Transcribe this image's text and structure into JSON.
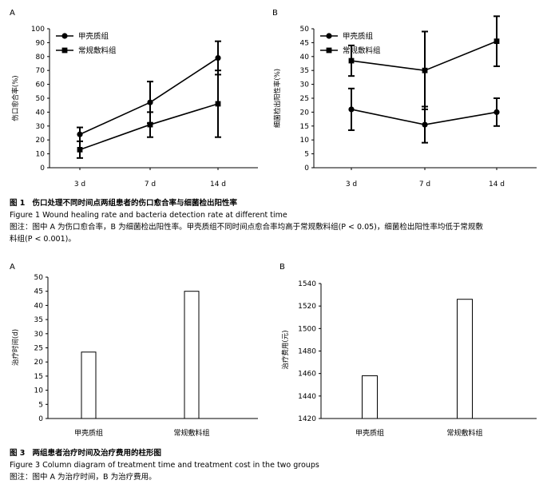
{
  "chart_data": [
    {
      "panel": "A",
      "type": "line",
      "categories": [
        "3 d",
        "7 d",
        "14 d"
      ],
      "ylabel": "伤口愈合率(%)",
      "ylim": [
        0,
        100
      ],
      "yticks": [
        0,
        10,
        20,
        30,
        40,
        50,
        60,
        70,
        80,
        90,
        100
      ],
      "legend_position": "top-left",
      "series": [
        {
          "name": "甲壳质组",
          "marker": "circle",
          "values": [
            24,
            47,
            79
          ],
          "err": [
            5,
            15,
            12
          ]
        },
        {
          "name": "常规敷料组",
          "marker": "square",
          "values": [
            13,
            31,
            46
          ],
          "err": [
            6,
            9,
            24
          ]
        }
      ]
    },
    {
      "panel": "B",
      "type": "line",
      "categories": [
        "3 d",
        "7 d",
        "14 d"
      ],
      "ylabel": "细菌检出阳性率(%)",
      "ylim": [
        0,
        50
      ],
      "yticks": [
        0,
        5,
        10,
        15,
        20,
        25,
        30,
        35,
        40,
        45,
        50
      ],
      "legend_position": "top-left",
      "series": [
        {
          "name": "甲壳质组",
          "marker": "circle",
          "values": [
            21,
            15.5,
            20
          ],
          "err": [
            7.5,
            6.5,
            5
          ]
        },
        {
          "name": "常规敷料组",
          "marker": "square",
          "values": [
            38.5,
            35,
            45.5
          ],
          "err": [
            5.5,
            14,
            9
          ]
        }
      ]
    },
    {
      "panel": "A",
      "type": "bar",
      "categories": [
        "甲壳质组",
        "常规敷料组"
      ],
      "values": [
        23.5,
        45
      ],
      "ylabel": "治疗时间(d)",
      "ylim": [
        0,
        50
      ],
      "yticks": [
        0,
        5,
        10,
        15,
        20,
        25,
        30,
        35,
        40,
        45,
        50
      ]
    },
    {
      "panel": "B",
      "type": "bar",
      "categories": [
        "甲壳质组",
        "常规敷料组"
      ],
      "values": [
        1458,
        1526
      ],
      "ylabel": "治疗费用(元)",
      "ylim": [
        1420,
        1540
      ],
      "yticks": [
        1420,
        1440,
        1460,
        1480,
        1500,
        1520,
        1540
      ]
    }
  ],
  "fig1": {
    "num_cn": "图 1",
    "title_cn": "伤口处理不同时间点两组患者的伤口愈合率与细菌检出阳性率",
    "title_en": "Figure 1    Wound healing rate and bacteria detection rate at different time",
    "note_line1": "图注：图中 A 为伤口愈合率，B 为细菌检出阳性率。甲壳质组不同时间点愈合率均高于常规敷料组(P < 0.05)，细菌检出阳性率均低于常规敷",
    "note_line2": "料组(P < 0.001)。"
  },
  "fig3": {
    "num_cn": "图 3",
    "title_cn": "两组患者治疗时间及治疗费用的柱形图",
    "title_en": "Figure 3    Column diagram of treatment time and treatment cost in the two groups",
    "note": "图注：图中 A 为治疗时间，B 为治疗费用。"
  },
  "colors": {
    "ink": "#000000",
    "bar_fill": "#ffffff"
  }
}
